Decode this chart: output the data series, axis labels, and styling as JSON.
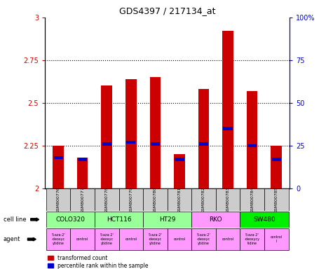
{
  "title": "GDS4397 / 217134_at",
  "samples": [
    "GSM800776",
    "GSM800777",
    "GSM800778",
    "GSM800779",
    "GSM800780",
    "GSM800781",
    "GSM800782",
    "GSM800783",
    "GSM800784",
    "GSM800785"
  ],
  "red_values": [
    2.25,
    2.18,
    2.6,
    2.64,
    2.65,
    2.2,
    2.58,
    2.92,
    2.57,
    2.25
  ],
  "blue_values": [
    2.18,
    2.17,
    2.26,
    2.27,
    2.26,
    2.17,
    2.26,
    2.35,
    2.25,
    2.17
  ],
  "ymin": 2.0,
  "ymax": 3.0,
  "yticks": [
    2.0,
    2.25,
    2.5,
    2.75,
    3.0
  ],
  "ytick_labels": [
    "2",
    "2.25",
    "2.5",
    "2.75",
    "3"
  ],
  "right_yticks": [
    0,
    25,
    50,
    75,
    100
  ],
  "right_ytick_labels": [
    "0",
    "25",
    "50",
    "75",
    "100%"
  ],
  "dotted_lines": [
    2.25,
    2.5,
    2.75
  ],
  "cell_lines": [
    {
      "name": "COLO320",
      "start": 0,
      "end": 2,
      "color": "#99ff99"
    },
    {
      "name": "HCT116",
      "start": 2,
      "end": 4,
      "color": "#99ff99"
    },
    {
      "name": "HT29",
      "start": 4,
      "end": 6,
      "color": "#99ff99"
    },
    {
      "name": "RKO",
      "start": 6,
      "end": 8,
      "color": "#ff99ff"
    },
    {
      "name": "SW480",
      "start": 8,
      "end": 10,
      "color": "#00ee00"
    }
  ],
  "agents": [
    {
      "name": "5-aza-2'\n-deoxyc\nytidine",
      "color": "#ff99ff"
    },
    {
      "name": "control",
      "color": "#ff99ff"
    },
    {
      "name": "5-aza-2'\n-deoxyc\nytidine",
      "color": "#ff99ff"
    },
    {
      "name": "control",
      "color": "#ff99ff"
    },
    {
      "name": "5-aza-2'\n-deoxyc\nytidine",
      "color": "#ff99ff"
    },
    {
      "name": "control",
      "color": "#ff99ff"
    },
    {
      "name": "5-aza-2'\n-deoxyc\nytidine",
      "color": "#ff99ff"
    },
    {
      "name": "control",
      "color": "#ff99ff"
    },
    {
      "name": "5-aza-2'\n-deoxycy\ntidine",
      "color": "#ff99ff"
    },
    {
      "name": "control\nl",
      "color": "#ff99ff"
    }
  ],
  "bar_width": 0.45,
  "bar_color": "#cc0000",
  "blue_color": "#0000cc",
  "bg_color": "#ffffff",
  "label_color_red": "#cc0000",
  "label_color_blue": "#0000cc",
  "sample_bg_color": "#cccccc",
  "cell_line_label": "cell line",
  "agent_label": "agent"
}
